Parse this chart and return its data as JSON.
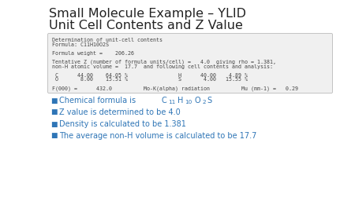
{
  "title_line1": "Small Molecule Example – YLID",
  "title_line2": "Unit Cell Contents and Z Value",
  "title_fontsize": 11.5,
  "title_color": "#222222",
  "bg_color": "#ffffff",
  "box_bg": "#f0f0f0",
  "box_edge": "#bbbbbb",
  "mono_lines": [
    "Determination of unit-cell contents",
    "Formula: C11H10O2S",
    " ",
    "Formula weight =    206.26",
    " ",
    "Tentative Z (number of formula units/cell) =   4.0  giving rho = 1.381,",
    "non-H atomic volume =  17.7  and following cell contents and analysis:",
    " ",
    " C      44.00    64.05 %                H      40.00    4.89 %",
    " O       8.00    15.51 %                S       4.00   15.55 %",
    " ",
    "F(000) =      432.0          Mo-K(alpha) radiation          Mu (mm-1) =   0.29"
  ],
  "mono_fontsize": 4.8,
  "mono_color": "#444444",
  "bullet_color": "#2e75b6",
  "bullet_fontsize": 7.0,
  "bullet_raw": [
    "Z value is determined to be 4.0",
    "Density is calculated to be 1.381",
    "The average non-H volume is calculated to be 17.7"
  ]
}
